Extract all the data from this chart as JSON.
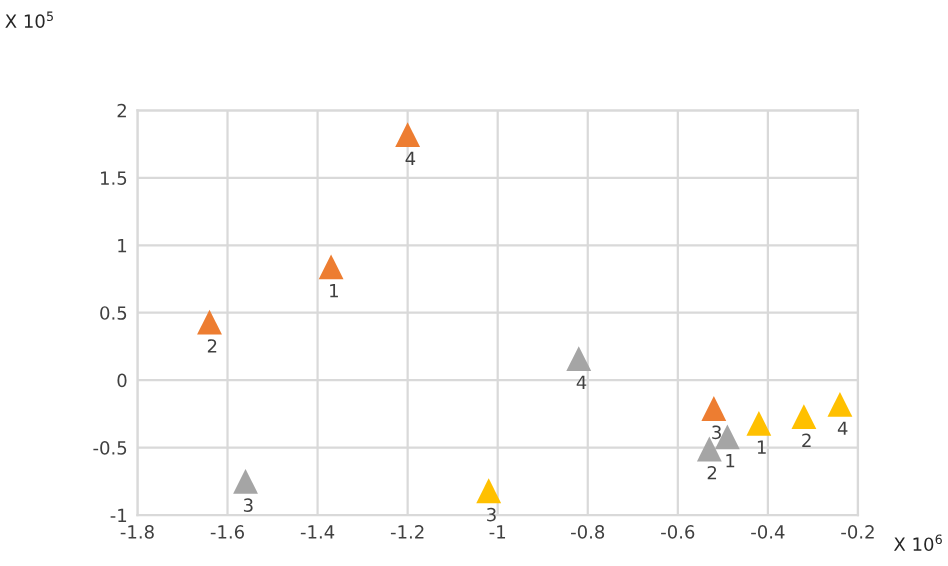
{
  "chart_data": {
    "type": "scatter",
    "marker": "triangle",
    "grid": true,
    "legend": false,
    "xlim": [
      -1.8,
      -0.2
    ],
    "xticks": [
      -1.8,
      -1.6,
      -1.4,
      -1.2,
      -1,
      -0.8,
      -0.6,
      -0.4,
      -0.2
    ],
    "ylim": [
      -1,
      2
    ],
    "yticks": [
      -1,
      -0.5,
      0,
      0.5,
      1,
      1.5,
      2
    ],
    "series": [
      {
        "color": "#ed7d31",
        "x": [
          -1.37,
          -1.64,
          -0.52,
          -1.2
        ],
        "values": [
          0.84,
          0.43,
          -0.21,
          1.82
        ]
      },
      {
        "color": "#a5a5a5",
        "x": [
          -0.49,
          -0.53,
          -1.56,
          -0.82
        ],
        "values": [
          -0.42,
          -0.51,
          -0.75,
          0.16
        ]
      },
      {
        "color": "#ffc000",
        "x": [
          -0.42,
          -0.32,
          -1.02,
          -0.24
        ],
        "values": [
          -0.32,
          -0.27,
          -0.82,
          -0.18
        ]
      }
    ],
    "annotations": [
      "X 10$^{5}$",
      "X 10$^{6}$",
      {
        "text": "1",
        "x": -1.37,
        "y": 0.84
      },
      {
        "text": "2",
        "x": -1.64,
        "y": 0.43
      },
      {
        "text": "3",
        "x": -0.52,
        "y": -0.21
      },
      {
        "text": "4",
        "x": -1.2,
        "y": 1.82
      },
      {
        "text": "1",
        "x": -0.49,
        "y": -0.42
      },
      {
        "text": "2",
        "x": -0.53,
        "y": -0.51
      },
      {
        "text": "3",
        "x": -1.56,
        "y": -0.75
      },
      {
        "text": "4",
        "x": -0.82,
        "y": 0.16
      },
      {
        "text": "1",
        "x": -0.42,
        "y": -0.32
      },
      {
        "text": "2",
        "x": -0.32,
        "y": -0.27
      },
      {
        "text": "3",
        "x": -1.02,
        "y": -0.82
      },
      {
        "text": "4",
        "x": -0.24,
        "y": -0.18
      }
    ]
  }
}
